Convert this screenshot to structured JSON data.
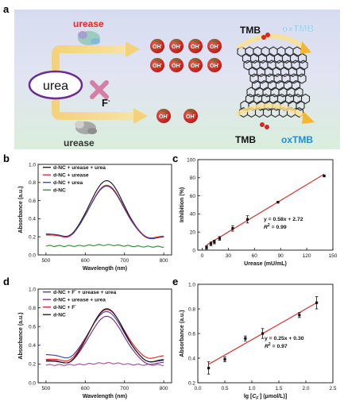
{
  "panel_labels": [
    "a",
    "b",
    "c",
    "d",
    "e"
  ],
  "scheme": {
    "urease_top": "urease",
    "urease_bottom": "urease",
    "urea": "urea",
    "fluoride": "F",
    "fluoride_sup": "-",
    "oh": "OH",
    "oh_sup": "-",
    "tmb_top": "TMB",
    "tmb_bottom": "TMB",
    "oxtmb_top": "oxTMB",
    "oxtmb_bottom": "oxTMB",
    "colors": {
      "urease_red": "#e8262b",
      "urea_ring": "#6b2c91",
      "cross": "#d37fa6",
      "oxtmb": "#1a8fe0",
      "tomato": "#d9261e"
    }
  },
  "chart_data": [
    {
      "panel": "b",
      "type": "line",
      "xlabel": "Wavelength (nm)",
      "ylabel": "Absorbance (a.u.)",
      "xlim": [
        480,
        820
      ],
      "ylim": [
        0,
        1.0
      ],
      "xticks": [
        500,
        600,
        700,
        800
      ],
      "yticks": [
        0.0,
        0.2,
        0.4,
        0.6,
        0.8,
        1.0
      ],
      "legend_position": "top-left",
      "series": [
        {
          "name": "d-NC + urease + urea",
          "color": "#111111",
          "peak": 0.82,
          "start": 0.23,
          "end": 0.2
        },
        {
          "name": "d-NC + urease",
          "color": "#e0201e",
          "peak": 0.77,
          "start": 0.22,
          "end": 0.21
        },
        {
          "name": "d-NC + urea",
          "color": "#3d3d9a",
          "peak": 0.76,
          "start": 0.23,
          "end": 0.2
        },
        {
          "name": "d-NC",
          "color": "#2a8a2a",
          "peak": 0.11,
          "start": 0.1,
          "end": 0.09
        }
      ]
    },
    {
      "panel": "c",
      "type": "scatter",
      "xlabel": "Urease (mU/mL)",
      "ylabel": "Inhibition (%)",
      "xlim": [
        -5,
        150
      ],
      "ylim": [
        0,
        100
      ],
      "xticks": [
        0,
        30,
        60,
        90,
        120,
        150
      ],
      "yticks": [
        0,
        20,
        40,
        60,
        80,
        100
      ],
      "equation": "y = 0.58x + 2.72",
      "r2_label": "R",
      "r2_sup": "2",
      "r2_value": " = 0.99",
      "fit": {
        "slope": 0.58,
        "intercept": 2.72
      },
      "points": [
        {
          "x": 5,
          "y": 3,
          "err": 2
        },
        {
          "x": 10,
          "y": 7,
          "err": 2
        },
        {
          "x": 14,
          "y": 9,
          "err": 2
        },
        {
          "x": 20,
          "y": 13,
          "err": 2
        },
        {
          "x": 35,
          "y": 24,
          "err": 3
        },
        {
          "x": 52,
          "y": 34,
          "err": 4
        },
        {
          "x": 87,
          "y": 53,
          "err": 1
        },
        {
          "x": 140,
          "y": 82,
          "err": 1
        }
      ]
    },
    {
      "panel": "d",
      "type": "line",
      "xlabel": "Wavelength (nm)",
      "ylabel": "Absorbance (a.u.)",
      "xlim": [
        480,
        820
      ],
      "ylim": [
        0,
        1.0
      ],
      "xticks": [
        500,
        600,
        700,
        800
      ],
      "yticks": [
        0.0,
        0.2,
        0.4,
        0.6,
        0.8,
        1.0
      ],
      "legend_position": "top-left",
      "series": [
        {
          "name": "d-NC + F + urease + urea",
          "name_sup": "-",
          "name_prefix": "d-NC + F",
          "name_suffix": " + urease + urea",
          "color": "#3d3d9a",
          "peak": 0.76,
          "start": 0.3,
          "end": 0.24
        },
        {
          "name": "d-NC + urease + urea",
          "color": "#7a2a7a",
          "peak": 0.71,
          "start": 0.24,
          "end": 0.22
        },
        {
          "name": "d-NC + F",
          "name_sup": "-",
          "name_prefix": "d-NC + F",
          "name_suffix": "",
          "color": "#e0201e",
          "peak": 0.78,
          "start": 0.25,
          "end": 0.29
        },
        {
          "name": "d-NC",
          "color": "#111111",
          "peak": 0.79,
          "start": 0.23,
          "end": 0.25
        },
        {
          "name": "",
          "color": "#a04aa8",
          "peak": 0.21,
          "start": 0.19,
          "end": 0.19
        }
      ]
    },
    {
      "panel": "e",
      "type": "scatter",
      "xlabel_prefix": "lg [",
      "xlabel_c": "C",
      "xlabel_sub": "F",
      "xlabel_subsup": "-",
      "xlabel_suffix": "] (μmol/L)]",
      "ylabel": "Absorbance (a.u.)",
      "xlim": [
        0,
        2.5
      ],
      "ylim": [
        0.2,
        1.0
      ],
      "xticks": [
        0.0,
        0.5,
        1.0,
        1.5,
        2.0,
        2.5
      ],
      "yticks": [
        0.2,
        0.4,
        0.6,
        0.8,
        1.0
      ],
      "equation": "y = 0.25x + 0.30",
      "r2_label": "R",
      "r2_sup": "2",
      "r2_value": " = 0.97",
      "fit": {
        "slope": 0.25,
        "intercept": 0.3
      },
      "points": [
        {
          "x": 0.2,
          "y": 0.32,
          "err": 0.05
        },
        {
          "x": 0.5,
          "y": 0.39,
          "err": 0.02
        },
        {
          "x": 0.88,
          "y": 0.56,
          "err": 0.02
        },
        {
          "x": 1.2,
          "y": 0.6,
          "err": 0.04
        },
        {
          "x": 1.88,
          "y": 0.75,
          "err": 0.02
        },
        {
          "x": 2.2,
          "y": 0.85,
          "err": 0.05
        }
      ]
    }
  ]
}
